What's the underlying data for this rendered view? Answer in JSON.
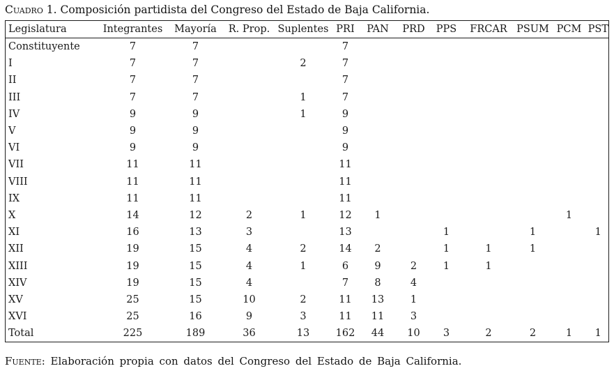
{
  "title": {
    "label": "Cuadro 1.",
    "rest": " Composición partidista del Congreso del Estado de Baja California."
  },
  "table": {
    "columns": [
      "Legislatura",
      "Integrantes",
      "Mayoría",
      "R. Prop.",
      "Suplentes",
      "PRI",
      "PAN",
      "PRD",
      "PPS",
      "FRCAR",
      "PSUM",
      "PCM",
      "PST"
    ],
    "rows": [
      [
        "Constituyente",
        "7",
        "7",
        "",
        "",
        "7",
        "",
        "",
        "",
        "",
        "",
        "",
        ""
      ],
      [
        "I",
        "7",
        "7",
        "",
        "2",
        "7",
        "",
        "",
        "",
        "",
        "",
        "",
        ""
      ],
      [
        "II",
        "7",
        "7",
        "",
        "",
        "7",
        "",
        "",
        "",
        "",
        "",
        "",
        ""
      ],
      [
        "III",
        "7",
        "7",
        "",
        "1",
        "7",
        "",
        "",
        "",
        "",
        "",
        "",
        ""
      ],
      [
        "IV",
        "9",
        "9",
        "",
        "1",
        "9",
        "",
        "",
        "",
        "",
        "",
        "",
        ""
      ],
      [
        "V",
        "9",
        "9",
        "",
        "",
        "9",
        "",
        "",
        "",
        "",
        "",
        "",
        ""
      ],
      [
        "VI",
        "9",
        "9",
        "",
        "",
        "9",
        "",
        "",
        "",
        "",
        "",
        "",
        ""
      ],
      [
        "VII",
        "11",
        "11",
        "",
        "",
        "11",
        "",
        "",
        "",
        "",
        "",
        "",
        ""
      ],
      [
        "VIII",
        "11",
        "11",
        "",
        "",
        "11",
        "",
        "",
        "",
        "",
        "",
        "",
        ""
      ],
      [
        "IX",
        "11",
        "11",
        "",
        "",
        "11",
        "",
        "",
        "",
        "",
        "",
        "",
        ""
      ],
      [
        "X",
        "14",
        "12",
        "2",
        "1",
        "12",
        "1",
        "",
        "",
        "",
        "",
        "1",
        ""
      ],
      [
        "XI",
        "16",
        "13",
        "3",
        "",
        "13",
        "",
        "",
        "1",
        "",
        "1",
        "",
        "1"
      ],
      [
        "XII",
        "19",
        "15",
        "4",
        "2",
        "14",
        "2",
        "",
        "1",
        "1",
        "1",
        "",
        ""
      ],
      [
        "XIII",
        "19",
        "15",
        "4",
        "1",
        "6",
        "9",
        "2",
        "1",
        "1",
        "",
        "",
        ""
      ],
      [
        "XIV",
        "19",
        "15",
        "4",
        "",
        "7",
        "8",
        "4",
        "",
        "",
        "",
        "",
        ""
      ],
      [
        "XV",
        "25",
        "15",
        "10",
        "2",
        "11",
        "13",
        "1",
        "",
        "",
        "",
        "",
        ""
      ],
      [
        "XVI",
        "25",
        "16",
        "9",
        "3",
        "11",
        "11",
        "3",
        "",
        "",
        "",
        "",
        ""
      ],
      [
        "Total",
        "225",
        "189",
        "36",
        "13",
        "162",
        "44",
        "10",
        "3",
        "2",
        "2",
        "1",
        "1"
      ]
    ]
  },
  "footer": {
    "label": "Fuente:",
    "rest": " Elaboración propia con datos del Congreso del Estado de Baja California."
  },
  "colors": {
    "text": "#1a1a1a",
    "border": "#1c1c1c",
    "background": "#ffffff"
  }
}
